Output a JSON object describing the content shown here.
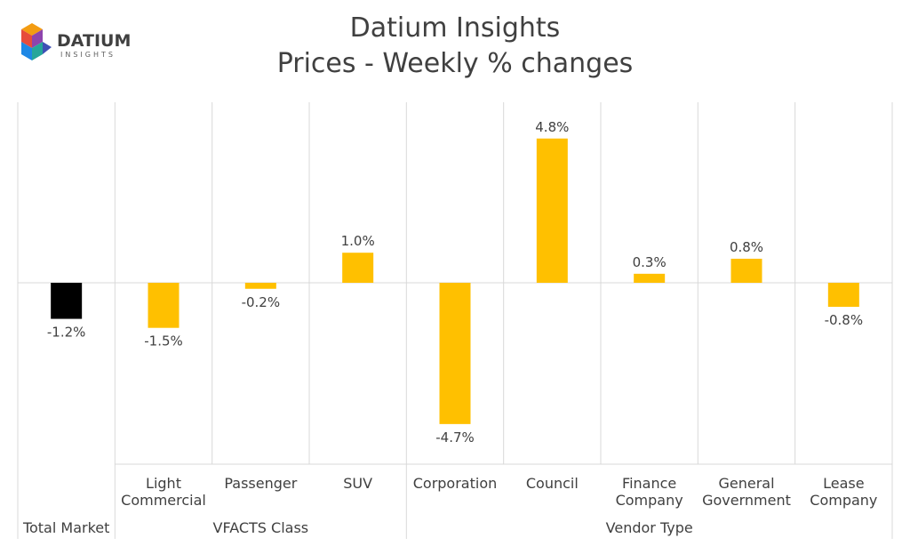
{
  "header": {
    "title_line1": "Datium Insights",
    "title_line2": "Prices - Weekly % changes",
    "logo_text": "DATIUM",
    "logo_subtext": "INSIGHTS"
  },
  "chart_data": {
    "type": "bar",
    "title": "Datium Insights\nPrices - Weekly % changes",
    "xlabel": "",
    "ylabel": "",
    "categories": [
      [
        "Total Market"
      ],
      [
        "Light",
        "Commercial"
      ],
      [
        "Passenger"
      ],
      [
        "SUV"
      ],
      [
        "Corporation"
      ],
      [
        "Council"
      ],
      [
        "Finance",
        "Company"
      ],
      [
        "General",
        "Government"
      ],
      [
        "Lease",
        "Company"
      ]
    ],
    "values": [
      -1.2,
      -1.5,
      -0.2,
      1.0,
      -4.7,
      4.8,
      0.3,
      0.8,
      -0.8
    ],
    "data_labels": [
      "-1.2%",
      "-1.5%",
      "-0.2%",
      "1.0%",
      "-4.7%",
      "4.8%",
      "0.3%",
      "0.8%",
      "-0.8%"
    ],
    "bar_colors": [
      "#000000",
      "#FFC000",
      "#FFC000",
      "#FFC000",
      "#FFC000",
      "#FFC000",
      "#FFC000",
      "#FFC000",
      "#FFC000"
    ],
    "groups": [
      {
        "label": "",
        "start": 0,
        "end": 0
      },
      {
        "label": "VFACTS Class",
        "start": 1,
        "end": 3
      },
      {
        "label": "Vendor Type",
        "start": 4,
        "end": 8
      }
    ],
    "ylim": [
      -6,
      6
    ],
    "grid": "vertical category separators",
    "legend": "none"
  }
}
